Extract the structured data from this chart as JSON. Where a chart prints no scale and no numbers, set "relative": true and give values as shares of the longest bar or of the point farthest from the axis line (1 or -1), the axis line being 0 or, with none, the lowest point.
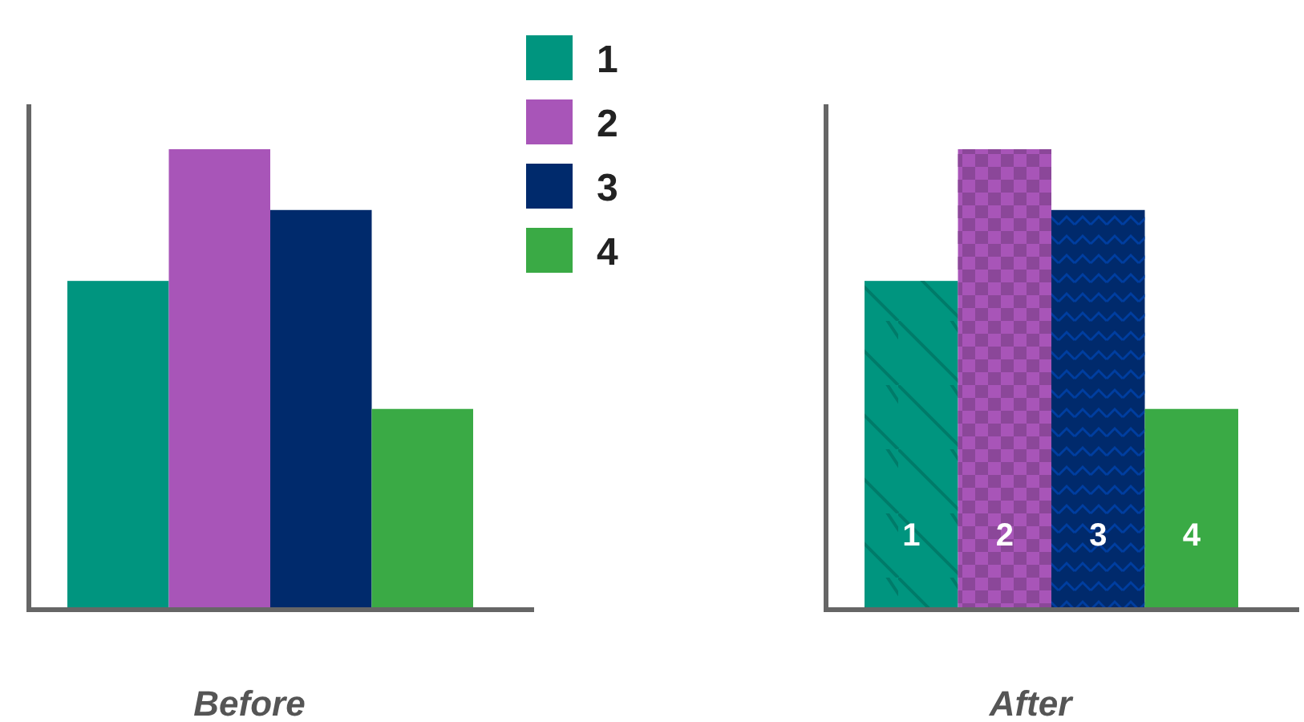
{
  "chart_data": [
    {
      "type": "bar",
      "relative": true,
      "categories": [
        null
      ],
      "xlabel": "Before",
      "legend": "top right",
      "series": [
        {
          "name": "1",
          "color": "#00957f",
          "values": [
            0.714
          ]
        },
        {
          "name": "2",
          "color": "#a855b8",
          "values": [
            1
          ]
        },
        {
          "name": "3",
          "color": "#002a6c",
          "values": [
            0.868
          ]
        },
        {
          "name": "4",
          "color": "#3aaa45",
          "values": [
            0.436
          ]
        }
      ]
    },
    {
      "type": "bar",
      "relative": true,
      "categories": [
        null
      ],
      "xlabel": "After",
      "legend": false,
      "series": [
        {
          "name": "1",
          "color": "#00957f",
          "values": [
            0.714
          ]
        },
        {
          "name": "2",
          "color": "#a855b8",
          "values": [
            1
          ]
        },
        {
          "name": "3",
          "color": "#002a6c",
          "values": [
            0.868
          ]
        },
        {
          "name": "4",
          "color": "#3aaa45",
          "values": [
            0.436
          ]
        }
      ]
    }
  ]
}
